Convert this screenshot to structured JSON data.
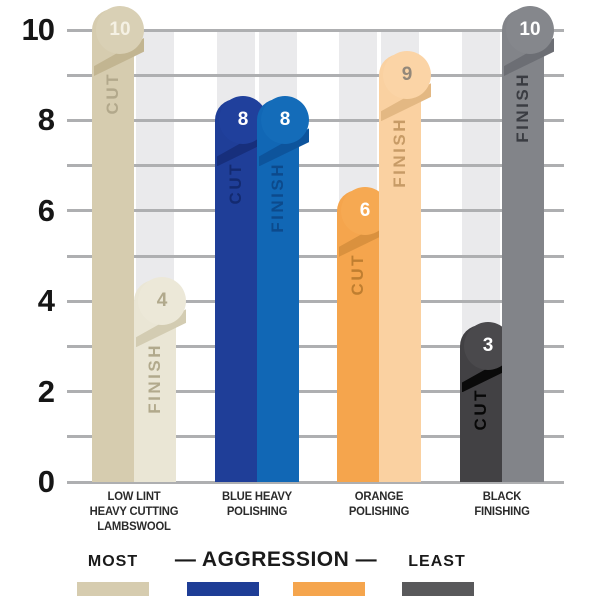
{
  "chart_data": {
    "type": "bar",
    "title": "",
    "categories": [
      "LOW LINT\nHEAVY CUTTING\nLAMBSWOOL",
      "BLUE HEAVY\nPOLISHING",
      "ORANGE\nPOLISHING",
      "BLACK\nFINISHING"
    ],
    "series": [
      {
        "name": "CUT",
        "values": [
          10,
          8,
          6,
          3
        ]
      },
      {
        "name": "FINISH",
        "values": [
          4,
          8,
          9,
          10
        ]
      }
    ],
    "ylim": [
      0,
      10
    ],
    "yticks": [
      10,
      8,
      6,
      4,
      2,
      0
    ],
    "grid": "horizontal gridlines at every integer from 0 to 10",
    "legend_position": "bottom",
    "bar_label_style": "value badge at bar top, series name written vertically inside bar"
  },
  "axis": {
    "yticks": [
      "10",
      "8",
      "6",
      "4",
      "2",
      "0"
    ]
  },
  "bars": [
    {
      "label": "CUT",
      "value": "10",
      "color": "#d6ccaf",
      "circle": "#d9d0b5",
      "fold": "#c2b591",
      "text_color": "#b2a88b",
      "num_color": "#f5f1e4"
    },
    {
      "label": "FINISH",
      "value": "4",
      "color": "#eae6d5",
      "circle": "#ece8d8",
      "fold": "#d3ccb2",
      "text_color": "#b1a98c",
      "num_color": "#b1a98c"
    },
    {
      "label": "CUT",
      "value": "8",
      "color": "#1f3e98",
      "circle": "#20409c",
      "fold": "#172f7c",
      "text_color": "#132a70",
      "num_color": "#ffffff"
    },
    {
      "label": "FINISH",
      "value": "8",
      "color": "#1167b5",
      "circle": "#146cb9",
      "fold": "#0d549c",
      "text_color": "#0c4a8c",
      "num_color": "#ffffff"
    },
    {
      "label": "CUT",
      "value": "6",
      "color": "#f5a54d",
      "circle": "#f6a952",
      "fold": "#da913e",
      "text_color": "#bf7e30",
      "num_color": "#ffffff"
    },
    {
      "label": "FINISH",
      "value": "9",
      "color": "#fad1a1",
      "circle": "#fbd4a6",
      "fold": "#e3b883",
      "text_color": "#c79b66",
      "num_color": "#93887a"
    },
    {
      "label": "CUT",
      "value": "3",
      "color": "#424144",
      "circle": "#4a494c",
      "fold": "#0a0a0a",
      "text_color": "#070707",
      "num_color": "#ffffff"
    },
    {
      "label": "FINISH",
      "value": "10",
      "color": "#828489",
      "circle": "#85878c",
      "fold": "#6c6e74",
      "text_color": "#3a3c42",
      "num_color": "#ffffff"
    }
  ],
  "legend": {
    "most": "MOST",
    "center": "— AGGRESSION —",
    "least": "LEAST",
    "swatch_colors": [
      "#d6ccaf",
      "#1e3d96",
      "#f5a54d",
      "#59595b"
    ],
    "gridline_color": "#aeafb1",
    "background_column_color": "#eaeaec"
  }
}
